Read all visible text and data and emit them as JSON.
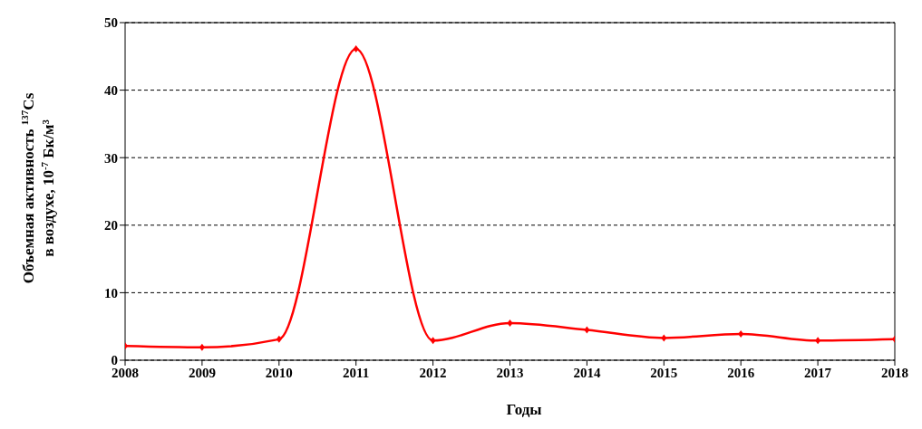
{
  "chart_data": {
    "type": "line",
    "categories": [
      "2008",
      "2009",
      "2010",
      "2011",
      "2012",
      "2013",
      "2014",
      "2015",
      "2016",
      "2017",
      "2018"
    ],
    "series": [
      {
        "color": "#ff0000",
        "values": [
          2.1,
          1.9,
          3.1,
          46.1,
          2.9,
          5.5,
          4.5,
          3.3,
          3.9,
          2.9,
          3.1
        ]
      }
    ],
    "xlabel": "Годы",
    "ylabel": "Объемная активность $^{137}$Cs\nв воздухе, 10$^{-7}$ Бк/м³",
    "ylim": [
      0,
      50
    ],
    "yticks": [
      0,
      10,
      20,
      30,
      40,
      50
    ],
    "grid": "y",
    "marker": "diamond",
    "line_style": "solid"
  }
}
